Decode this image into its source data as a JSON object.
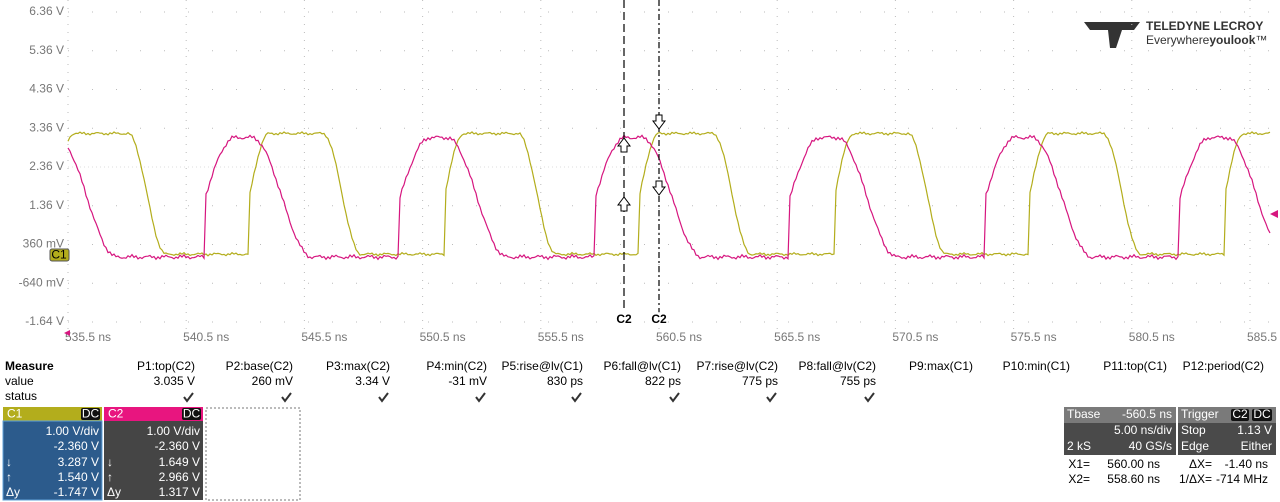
{
  "plot": {
    "y_labels": [
      "6.36 V",
      "5.36 V",
      "4.36 V",
      "3.36 V",
      "2.36 V",
      "1.36 V",
      "360 mV",
      "-640 mV",
      "-1.64 V"
    ],
    "x_labels": [
      "535.5 ns",
      "540.5 ns",
      "545.5 ns",
      "550.5 ns",
      "555.5 ns",
      "560.5 ns",
      "565.5 ns",
      "570.5 ns",
      "575.5 ns",
      "580.5 ns",
      "585.5 ns"
    ],
    "cursor_labels": [
      "C2",
      "C2"
    ],
    "ground_marker": "C1"
  },
  "logo": {
    "brand": "TELEDYNE LECROY",
    "tagline_a": "Everywhere",
    "tagline_b": "youlook",
    "tagline_c": "™"
  },
  "measure": {
    "title": "Measure",
    "row_labels": [
      "value",
      "status"
    ],
    "columns": [
      "P1:top(C2)",
      "P2:base(C2)",
      "P3:max(C2)",
      "P4:min(C2)",
      "P5:rise@lv(C1)",
      "P6:fall@lv(C1)",
      "P7:rise@lv(C2)",
      "P8:fall@lv(C2)",
      "P9:max(C1)",
      "P10:min(C1)",
      "P11:top(C1)",
      "P12:period(C2)"
    ],
    "values": [
      "3.035 V",
      "260 mV",
      "3.34 V",
      "-31 mV",
      "830 ps",
      "822 ps",
      "775 ps",
      "755 ps"
    ]
  },
  "channels": [
    {
      "name": "C1",
      "coupling": "DC",
      "volts_div": "1.00 V/div",
      "offset": "-2.360 V",
      "cursors": [
        {
          "sym": "↓",
          "value": "3.287 V"
        },
        {
          "sym": "↑",
          "value": "1.540 V"
        },
        {
          "sym": "Δy",
          "value": "-1.747 V"
        }
      ]
    },
    {
      "name": "C2",
      "coupling": "DC",
      "volts_div": "1.00 V/div",
      "offset": "-2.360 V",
      "cursors": [
        {
          "sym": "↓",
          "value": "1.649 V"
        },
        {
          "sym": "↑",
          "value": "2.966 V"
        },
        {
          "sym": "Δy",
          "value": "1.317 V"
        }
      ]
    }
  ],
  "timebase": {
    "title": "Tbase",
    "delay": "-560.5 ns",
    "time_div": "5.00 ns/div",
    "samples": "2 kS",
    "rate": "40 GS/s"
  },
  "trigger": {
    "title": "Trigger",
    "source": "C2",
    "coupling": "DC",
    "mode": "Stop",
    "level": "1.13 V",
    "type": "Edge",
    "slope": "Either"
  },
  "readout": [
    {
      "label": "X1=",
      "value": "560.00 ns",
      "dlabel": "ΔX=",
      "dvalue": "-1.40 ns"
    },
    {
      "label": "X2=",
      "value": "558.60 ns",
      "dlabel": "1/ΔX=",
      "dvalue": "-714 MHz"
    }
  ]
}
